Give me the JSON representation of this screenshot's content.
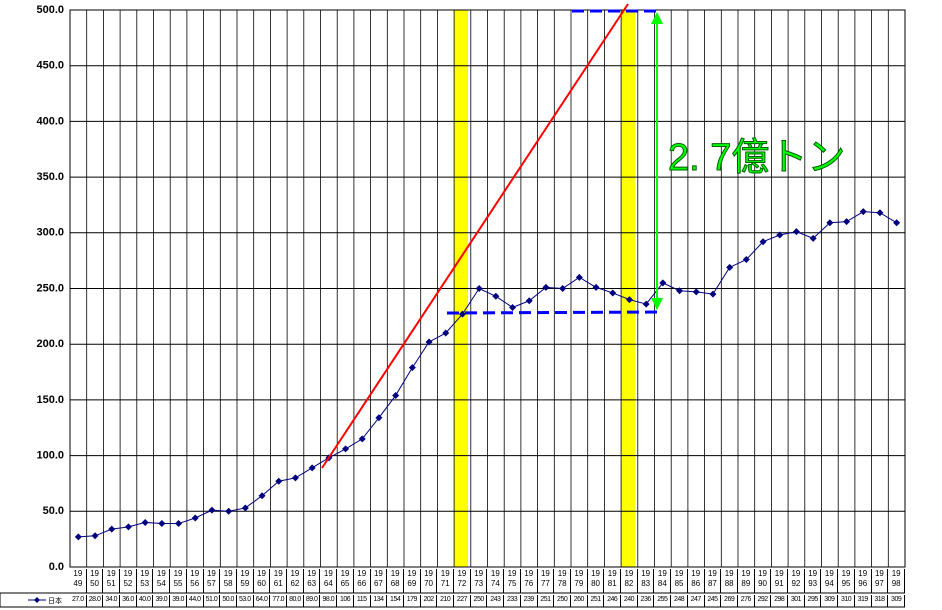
{
  "chart_data": {
    "type": "line",
    "categories": [
      "1949",
      "1950",
      "1951",
      "1952",
      "1953",
      "1954",
      "1955",
      "1956",
      "1957",
      "1958",
      "1959",
      "1960",
      "1961",
      "1962",
      "1963",
      "1964",
      "1965",
      "1966",
      "1967",
      "1968",
      "1969",
      "1970",
      "1971",
      "1972",
      "1973",
      "1974",
      "1975",
      "1976",
      "1977",
      "1978",
      "1979",
      "1980",
      "1981",
      "1982",
      "1983",
      "1984",
      "1985",
      "1986",
      "1987",
      "1988",
      "1989",
      "1990",
      "1991",
      "1992",
      "1993",
      "1994",
      "1995",
      "1996",
      "1997",
      "1998"
    ],
    "series": [
      {
        "name": "日本",
        "color": "#000080",
        "values": [
          27,
          28,
          34,
          36,
          40,
          39,
          39,
          44,
          51,
          50,
          53,
          64,
          77,
          80,
          89,
          98,
          106,
          115,
          134,
          154,
          179,
          202,
          210,
          227,
          250,
          243,
          233,
          239,
          251,
          250,
          260,
          251,
          246,
          240,
          236,
          255,
          248,
          247,
          245,
          269,
          276,
          292,
          298,
          301,
          295,
          309,
          310,
          319,
          318,
          309
        ],
        "value_labels": [
          "27.0",
          "28.0",
          "34.0",
          "36.0",
          "40.0",
          "39.0",
          "39.0",
          "44.0",
          "51.0",
          "50.0",
          "53.0",
          "64.0",
          "77.0",
          "80.0",
          "89.0",
          "98.0",
          "106",
          "115",
          "134",
          "154",
          "179",
          "202",
          "210",
          "227",
          "250",
          "243",
          "233",
          "239",
          "251",
          "250",
          "260",
          "251",
          "246",
          "240",
          "236",
          "255",
          "248",
          "247",
          "245",
          "269",
          "276",
          "292",
          "298",
          "301",
          "295",
          "309",
          "310",
          "319",
          "318",
          "309"
        ]
      }
    ],
    "ylim": [
      0,
      500
    ],
    "yticks": [
      {
        "value": 0,
        "label": "0.0"
      },
      {
        "value": 50,
        "label": "50.0"
      },
      {
        "value": 100,
        "label": "100.0"
      },
      {
        "value": 150,
        "label": "150.0"
      },
      {
        "value": 200,
        "label": "200.0"
      },
      {
        "value": 250,
        "label": "250.0"
      },
      {
        "value": 300,
        "label": "300.0"
      },
      {
        "value": 350,
        "label": "350.0"
      },
      {
        "value": 400,
        "label": "400.0"
      },
      {
        "value": 450,
        "label": "450.0"
      },
      {
        "value": 500,
        "label": "500.0"
      }
    ],
    "grid": true,
    "annotation": "2. 7億トン"
  }
}
